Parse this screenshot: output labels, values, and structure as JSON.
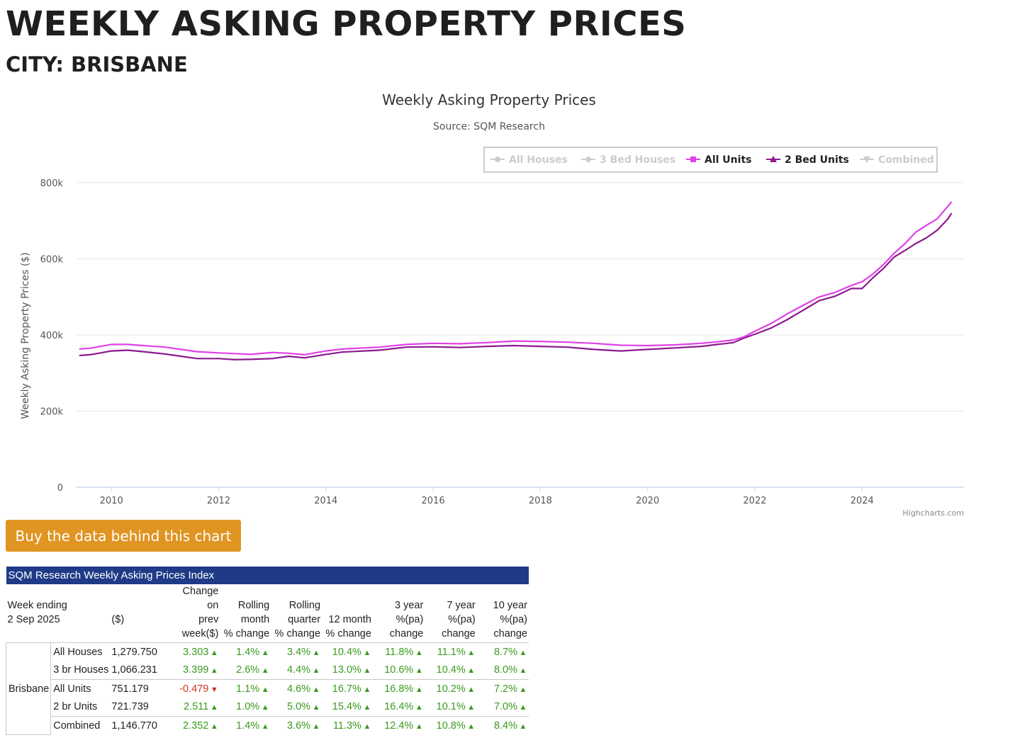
{
  "page": {
    "title": "WEEKLY ASKING PROPERTY PRICES",
    "city": "CITY: BRISBANE",
    "buy_button": "Buy the data behind this chart"
  },
  "chart_data": {
    "type": "line",
    "title": "Weekly Asking Property Prices",
    "subtitle": "Source: SQM Research",
    "ylabel": "Weekly Asking Property Prices ($)",
    "xlabel": "",
    "credit": "Highcharts.com",
    "ylim": [
      0,
      800000
    ],
    "xlim": [
      2009.35,
      2025.9
    ],
    "y_ticks": [
      "0",
      "200k",
      "400k",
      "600k",
      "800k"
    ],
    "y_tick_values": [
      0,
      200000,
      400000,
      600000,
      800000
    ],
    "x_ticks": [
      "2010",
      "2012",
      "2014",
      "2016",
      "2018",
      "2020",
      "2022",
      "2024"
    ],
    "grid": true,
    "legend_position": "top-right",
    "legend": [
      {
        "name": "All Houses",
        "visible": false,
        "marker": "circle"
      },
      {
        "name": "3 Bed Houses",
        "visible": false,
        "marker": "diamond"
      },
      {
        "name": "All Units",
        "visible": true,
        "marker": "square",
        "color": "#e040e8"
      },
      {
        "name": "2 Bed Units",
        "visible": true,
        "marker": "triangle",
        "color": "#8b1a8e"
      },
      {
        "name": "Combined",
        "visible": false,
        "marker": "triangle-down"
      }
    ],
    "series": [
      {
        "name": "All Units",
        "color": "#e040e8",
        "x": [
          2009.4,
          2009.6,
          2009.8,
          2010.0,
          2010.3,
          2010.6,
          2011.0,
          2011.3,
          2011.6,
          2012.0,
          2012.3,
          2012.6,
          2013.0,
          2013.3,
          2013.6,
          2014.0,
          2014.3,
          2014.7,
          2015.0,
          2015.5,
          2016.0,
          2016.5,
          2017.0,
          2017.5,
          2018.0,
          2018.5,
          2019.0,
          2019.5,
          2020.0,
          2020.5,
          2021.0,
          2021.3,
          2021.6,
          2021.8,
          2022.0,
          2022.3,
          2022.6,
          2022.9,
          2023.2,
          2023.5,
          2023.8,
          2024.0,
          2024.2,
          2024.4,
          2024.6,
          2024.8,
          2025.0,
          2025.2,
          2025.4,
          2025.6,
          2025.67
        ],
        "values": [
          363000,
          365000,
          370000,
          375000,
          375000,
          372000,
          368000,
          362000,
          356000,
          353000,
          351000,
          349000,
          354000,
          352000,
          348000,
          358000,
          363000,
          366000,
          368000,
          375000,
          378000,
          377000,
          380000,
          384000,
          383000,
          381000,
          378000,
          373000,
          372000,
          374000,
          378000,
          382000,
          387000,
          395000,
          410000,
          430000,
          455000,
          478000,
          500000,
          512000,
          530000,
          540000,
          560000,
          585000,
          615000,
          640000,
          670000,
          688000,
          705000,
          738000,
          750000
        ]
      },
      {
        "name": "2 Bed Units",
        "color": "#8b1a8e",
        "x": [
          2009.4,
          2009.6,
          2009.8,
          2010.0,
          2010.3,
          2010.6,
          2011.0,
          2011.3,
          2011.6,
          2012.0,
          2012.3,
          2012.6,
          2013.0,
          2013.3,
          2013.6,
          2014.0,
          2014.3,
          2014.7,
          2015.0,
          2015.5,
          2016.0,
          2016.5,
          2017.0,
          2017.5,
          2018.0,
          2018.5,
          2019.0,
          2019.5,
          2020.0,
          2020.5,
          2021.0,
          2021.3,
          2021.6,
          2021.8,
          2022.0,
          2022.3,
          2022.6,
          2022.9,
          2023.2,
          2023.5,
          2023.8,
          2024.0,
          2024.2,
          2024.4,
          2024.6,
          2024.8,
          2025.0,
          2025.2,
          2025.4,
          2025.6,
          2025.67
        ],
        "values": [
          346000,
          348000,
          353000,
          358000,
          360000,
          356000,
          350000,
          344000,
          338000,
          338000,
          335000,
          336000,
          338000,
          344000,
          340000,
          349000,
          355000,
          358000,
          360000,
          368000,
          369000,
          367000,
          370000,
          372000,
          370000,
          368000,
          362000,
          358000,
          362000,
          366000,
          370000,
          375000,
          380000,
          392000,
          402000,
          418000,
          440000,
          465000,
          490000,
          502000,
          522000,
          522000,
          550000,
          575000,
          605000,
          622000,
          640000,
          655000,
          675000,
          705000,
          720000
        ]
      }
    ]
  },
  "table": {
    "caption": "SQM Research Weekly Asking Prices Index",
    "headers": {
      "week_ending": "Week ending",
      "date": "2 Sep 2025",
      "price": "($)",
      "change_prev_1": "Change",
      "change_prev_2": "on",
      "change_prev_3": "prev",
      "change_prev_4": "week($)",
      "rolling_month_1": "Rolling",
      "rolling_month_2": "month",
      "rolling_month_3": "% change",
      "rolling_quarter_1": "Rolling",
      "rolling_quarter_2": "quarter",
      "rolling_quarter_3": "% change",
      "month12_1": "12 month",
      "month12_2": "% change",
      "year3_1": "3 year",
      "year3_2": "%(pa)",
      "year3_3": "change",
      "year7_1": "7 year",
      "year7_2": "%(pa)",
      "year7_3": "change",
      "year10_1": "10 year",
      "year10_2": "%(pa)",
      "year10_3": "change"
    },
    "city": "Brisbane",
    "rows": [
      {
        "label": "All Houses",
        "price": "1,279.750",
        "prev": "3.303",
        "prev_dir": "up",
        "month": "1.4%",
        "quarter": "3.4%",
        "m12": "10.4%",
        "y3": "11.8%",
        "y7": "11.1%",
        "y10": "8.7%"
      },
      {
        "label": "3 br Houses",
        "price": "1,066.231",
        "prev": "3.399",
        "prev_dir": "up",
        "month": "2.6%",
        "quarter": "4.4%",
        "m12": "13.0%",
        "y3": "10.6%",
        "y7": "10.4%",
        "y10": "8.0%"
      },
      {
        "label": "All Units",
        "price": "751.179",
        "prev": "-0.479",
        "prev_dir": "down",
        "month": "1.1%",
        "quarter": "4.6%",
        "m12": "16.7%",
        "y3": "16.8%",
        "y7": "10.2%",
        "y10": "7.2%"
      },
      {
        "label": "2 br Units",
        "price": "721.739",
        "prev": "2.511",
        "prev_dir": "up",
        "month": "1.0%",
        "quarter": "5.0%",
        "m12": "15.4%",
        "y3": "16.4%",
        "y7": "10.1%",
        "y10": "7.0%"
      },
      {
        "label": "Combined",
        "price": "1,146.770",
        "prev": "2.352",
        "prev_dir": "up",
        "month": "1.4%",
        "quarter": "3.6%",
        "m12": "11.3%",
        "y3": "12.4%",
        "y7": "10.8%",
        "y10": "8.4%"
      }
    ]
  }
}
